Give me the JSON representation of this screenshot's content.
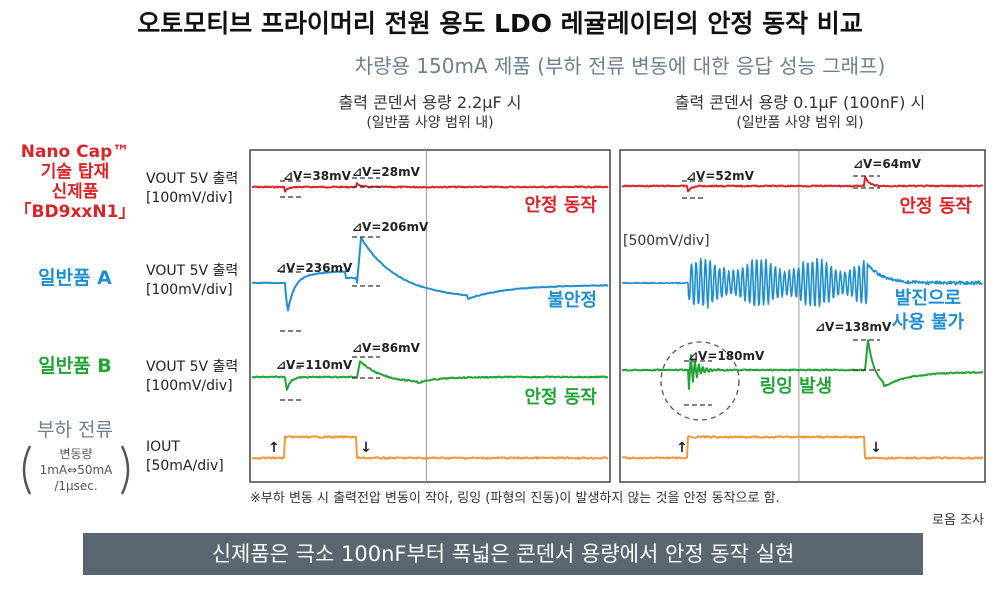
{
  "title": "오토모티브 프라이머리 전원 용도 LDO 레귤레이터의 안정 동작 비교",
  "subtitle": "차량용 150mA 제품 (부하 전류 변동에 대한 응답 성능 그래프)",
  "columns": [
    {
      "line1": "출력 콘덴서 용량 2.2μF 시",
      "line2": "(일반품 사양 범위 내)"
    },
    {
      "line1": "출력 콘덴서 용량 0.1μF (100nF) 시",
      "line2": "(일반품 사양 범위 외)"
    }
  ],
  "rows": {
    "nano": {
      "name_lines": [
        "Nano Cap™",
        "기술 탑재",
        "신제품",
        "「BD9xxN1」"
      ],
      "channel_line1": "VOUT 5V 출력",
      "channel_line2": "[100mV/div]"
    },
    "a": {
      "name": "일반품 A",
      "channel_line1": "VOUT 5V 출력",
      "channel_line2": "[100mV/div]"
    },
    "b": {
      "name": "일반품 B",
      "channel_line1": "VOUT 5V 출력",
      "channel_line2": "[100mV/div]"
    },
    "load": {
      "name": "부하 전류",
      "detail_lines": [
        "변동량",
        "1mA⇔50mA",
        "/1μsec."
      ],
      "channel_line1": "IOUT",
      "channel_line2": "[50mA/div]"
    }
  },
  "colors": {
    "nano": "#d9252a",
    "a": "#1f8fd0",
    "b": "#22a335",
    "load": "#f0993a",
    "banner": "#5a6670",
    "subtitle": "#6e7f8f"
  },
  "chart_data": [
    {
      "type": "line",
      "panel": "출력 콘덴서 용량 2.2μF 시",
      "series": [
        {
          "name": "Nano Cap™ 기술 탑재 신제품 「BD9xxN1」",
          "annotations": [
            "⊿V=38mV",
            "⊿V=28mV"
          ],
          "status": "안정 동작"
        },
        {
          "name": "일반품 A",
          "annotations": [
            "⊿V=236mV",
            "⊿V=206mV"
          ],
          "status": "불안정"
        },
        {
          "name": "일반품 B",
          "annotations": [
            "⊿V=110mV",
            "⊿V=86mV"
          ],
          "status": "안정 동작"
        },
        {
          "name": "부하 전류",
          "annotations": [
            "↑",
            "↓"
          ]
        }
      ]
    },
    {
      "type": "line",
      "panel": "출력 콘덴서 용량 0.1μF (100nF) 시",
      "scale_note": "[500mV/div]",
      "series": [
        {
          "name": "Nano Cap™ 기술 탑재 신제품 「BD9xxN1」",
          "annotations": [
            "⊿V=52mV",
            "⊿V=64mV"
          ],
          "status": "안정 동작"
        },
        {
          "name": "일반품 A",
          "status_lines": [
            "발진으로",
            "사용 불가"
          ]
        },
        {
          "name": "일반품 B",
          "annotations": [
            "⊿V=180mV",
            "⊿V=138mV"
          ],
          "status": "링잉 발생"
        },
        {
          "name": "부하 전류",
          "annotations": [
            "↑",
            "↓"
          ]
        }
      ]
    }
  ],
  "footnote": "※부하 변동 시 출력전압 변동이 작아, 링잉 (파형의 진동)이 발생하지 않는 것을 안정 동작으로 함.",
  "source": "로옴 조사",
  "banner": "신제품은 극소 100nF부터 폭넓은 콘덴서 용량에서 안정 동작 실현"
}
